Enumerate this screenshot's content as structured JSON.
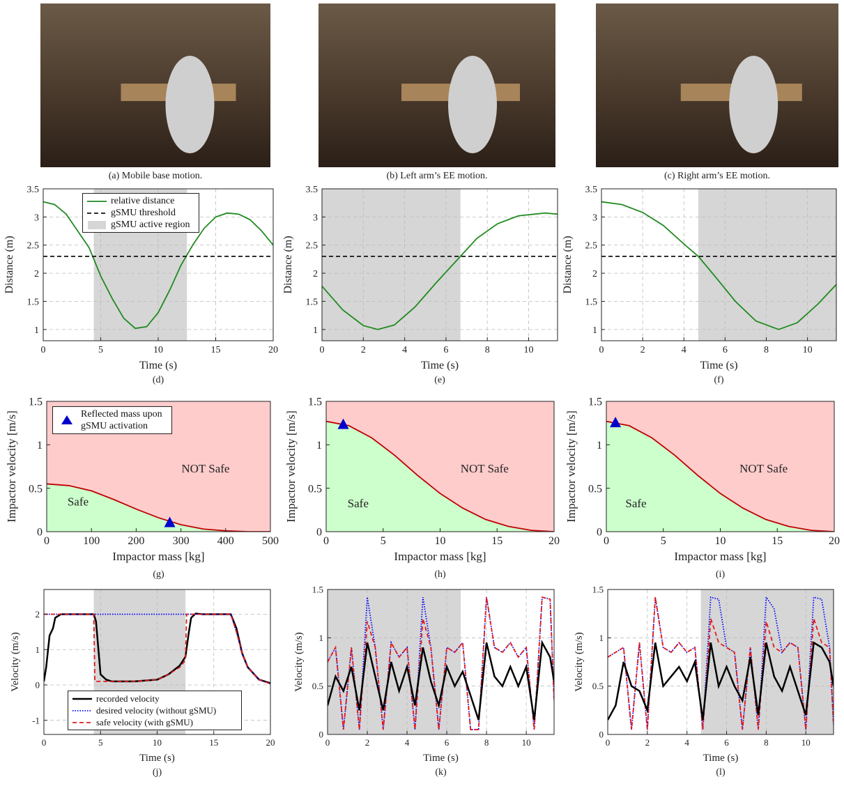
{
  "images": [
    {
      "caption": "(a) Mobile base motion."
    },
    {
      "caption": "(b) Left arm’s EE motion."
    },
    {
      "caption": "(c) Right arm’s EE motion."
    }
  ],
  "chart_data": [
    {
      "type": "line",
      "caption": "(d)",
      "xlabel": "Time (s)",
      "ylabel": "Distance (m)",
      "xlim": [
        0,
        20
      ],
      "ylim": [
        0.8,
        3.5
      ],
      "xticks": [
        0,
        5,
        10,
        15,
        20
      ],
      "yticks": [
        1,
        1.5,
        2,
        2.5,
        3,
        3.5
      ],
      "grid": true,
      "legend": "upper left",
      "series": [
        {
          "name": "relative distance",
          "kind": "line",
          "color": "#1f8a1f",
          "x": [
            0,
            1,
            2,
            3,
            4,
            5,
            6,
            7,
            8,
            9,
            10,
            11,
            12,
            13,
            14,
            15,
            16,
            17,
            18,
            19,
            20
          ],
          "values": [
            3.27,
            3.22,
            3.05,
            2.75,
            2.45,
            1.95,
            1.55,
            1.2,
            1.02,
            1.05,
            1.3,
            1.7,
            2.15,
            2.5,
            2.8,
            3.0,
            3.07,
            3.05,
            2.95,
            2.75,
            2.5
          ]
        },
        {
          "name": "gSMU threshold",
          "kind": "line",
          "style": "dashed",
          "color": "#111111",
          "x": [
            0,
            20
          ],
          "values": [
            2.3,
            2.3
          ]
        },
        {
          "name": "gSMU active region",
          "kind": "span",
          "color": "#d6d6d6",
          "x": [
            4.4,
            12.5
          ]
        }
      ]
    },
    {
      "type": "line",
      "caption": "(e)",
      "xlabel": "Time (s)",
      "ylabel": "Distance (m)",
      "xlim": [
        0,
        11.4
      ],
      "ylim": [
        0.8,
        3.5
      ],
      "xticks": [
        0,
        2,
        4,
        6,
        8,
        10
      ],
      "yticks": [
        1,
        1.5,
        2,
        2.5,
        3,
        3.5
      ],
      "grid": true,
      "series": [
        {
          "kind": "line",
          "color": "#1f8a1f",
          "x": [
            0,
            1,
            2,
            2.7,
            3.5,
            4.5,
            5.5,
            6.7,
            7.5,
            8.5,
            9.5,
            10.8,
            11.4
          ],
          "values": [
            1.77,
            1.35,
            1.07,
            1.0,
            1.08,
            1.4,
            1.82,
            2.3,
            2.62,
            2.88,
            3.02,
            3.07,
            3.05
          ]
        },
        {
          "kind": "line",
          "style": "dashed",
          "color": "#111111",
          "x": [
            0,
            11.4
          ],
          "values": [
            2.3,
            2.3
          ]
        },
        {
          "kind": "span",
          "color": "#d6d6d6",
          "x": [
            0,
            6.7
          ]
        }
      ]
    },
    {
      "type": "line",
      "caption": "(f)",
      "xlabel": "Time (s)",
      "ylabel": "Distance (m)",
      "xlim": [
        0,
        11.4
      ],
      "ylim": [
        0.8,
        3.5
      ],
      "xticks": [
        0,
        2,
        4,
        6,
        8,
        10
      ],
      "yticks": [
        1,
        1.5,
        2,
        2.5,
        3,
        3.5
      ],
      "grid": true,
      "series": [
        {
          "kind": "line",
          "color": "#1f8a1f",
          "x": [
            0,
            1,
            2,
            3,
            4,
            4.7,
            5.5,
            6.5,
            7.5,
            8.6,
            9.5,
            10.5,
            11.4
          ],
          "values": [
            3.27,
            3.22,
            3.08,
            2.85,
            2.52,
            2.3,
            1.95,
            1.5,
            1.15,
            1.0,
            1.12,
            1.45,
            1.8
          ]
        },
        {
          "kind": "line",
          "style": "dashed",
          "color": "#111111",
          "x": [
            0,
            11.4
          ],
          "values": [
            2.3,
            2.3
          ]
        },
        {
          "kind": "span",
          "color": "#d6d6d6",
          "x": [
            4.7,
            11.4
          ]
        }
      ]
    },
    {
      "type": "area",
      "caption": "(g)",
      "xlabel": "Impactor mass [kg]",
      "ylabel": "Impactor velocity [m/s]",
      "background": "#ffcccc",
      "xlim": [
        0,
        500
      ],
      "ylim": [
        0,
        1.5
      ],
      "xticks": [
        0,
        100,
        200,
        300,
        400,
        500
      ],
      "yticks": [
        0,
        0.5,
        1,
        1.5
      ],
      "grid": false,
      "legend": "upper left",
      "annotations": [
        {
          "text": "Safe",
          "x": 70,
          "y": 0.3
        },
        {
          "text": "NOT Safe",
          "x": 355,
          "y": 0.68
        }
      ],
      "series": [
        {
          "kind": "line",
          "color": "#c00000",
          "fill_below": "#ccffcc",
          "x": [
            0,
            50,
            100,
            150,
            200,
            250,
            300,
            350,
            400,
            450,
            500
          ],
          "values": [
            0.55,
            0.53,
            0.47,
            0.37,
            0.26,
            0.16,
            0.08,
            0.03,
            0.01,
            0,
            0
          ]
        },
        {
          "name": "Reflected mass upon gSMU activation",
          "kind": "marker",
          "color": "#0000cc",
          "x": [
            275
          ],
          "values": [
            0.1
          ]
        }
      ]
    },
    {
      "type": "area",
      "caption": "(h)",
      "xlabel": "Impactor mass [kg]",
      "ylabel": "Impactor velocity [m/s]",
      "background": "#ffcccc",
      "xlim": [
        0,
        20
      ],
      "ylim": [
        0,
        1.5
      ],
      "xticks": [
        0,
        5,
        10,
        15,
        20
      ],
      "yticks": [
        0,
        0.5,
        1,
        1.5
      ],
      "grid": false,
      "annotations": [
        {
          "text": "Safe",
          "x": 2.8,
          "y": 0.28
        },
        {
          "text": "NOT Safe",
          "x": 13.9,
          "y": 0.68
        }
      ],
      "series": [
        {
          "kind": "line",
          "color": "#c00000",
          "fill_below": "#ccffcc",
          "x": [
            0,
            2,
            4,
            6,
            8,
            10,
            12,
            14,
            16,
            18,
            20
          ],
          "values": [
            1.27,
            1.22,
            1.08,
            0.88,
            0.65,
            0.44,
            0.27,
            0.14,
            0.06,
            0.015,
            0
          ]
        },
        {
          "kind": "marker",
          "color": "#0000cc",
          "x": [
            1.5
          ],
          "values": [
            1.23
          ]
        }
      ]
    },
    {
      "type": "area",
      "caption": "(i)",
      "xlabel": "Impactor mass [kg]",
      "ylabel": "Impactor velocity [m/s]",
      "background": "#ffcccc",
      "xlim": [
        0,
        20
      ],
      "ylim": [
        0,
        1.5
      ],
      "xticks": [
        0,
        5,
        10,
        15,
        20
      ],
      "yticks": [
        0,
        0.5,
        1,
        1.5
      ],
      "grid": false,
      "annotations": [
        {
          "text": "Safe",
          "x": 2.6,
          "y": 0.28
        },
        {
          "text": "NOT Safe",
          "x": 13.8,
          "y": 0.68
        }
      ],
      "series": [
        {
          "kind": "line",
          "color": "#c00000",
          "fill_below": "#ccffcc",
          "x": [
            0,
            2,
            4,
            6,
            8,
            10,
            12,
            14,
            16,
            18,
            20
          ],
          "values": [
            1.27,
            1.22,
            1.08,
            0.88,
            0.65,
            0.44,
            0.27,
            0.14,
            0.06,
            0.015,
            0
          ]
        },
        {
          "kind": "marker",
          "color": "#0000cc",
          "x": [
            0.8
          ],
          "values": [
            1.25
          ]
        }
      ]
    },
    {
      "type": "line",
      "caption": "(j)",
      "xlabel": "Time (s)",
      "ylabel": "Velocity (m/s)",
      "xlim": [
        0,
        20
      ],
      "ylim": [
        -1.4,
        2.7
      ],
      "xticks": [
        0,
        5,
        10,
        15,
        20
      ],
      "yticks": [
        -1,
        0,
        1,
        2
      ],
      "grid": true,
      "legend": "lower left",
      "series": [
        {
          "name": "recorded velocity",
          "kind": "line",
          "color": "#000000",
          "width": 2.5,
          "x": [
            0,
            0.2,
            0.5,
            0.8,
            1,
            1.5,
            2,
            4.4,
            4.6,
            5,
            5.5,
            6,
            8,
            10,
            11,
            12,
            12.5,
            12.8,
            13,
            13.4,
            14,
            16.5,
            17,
            17.5,
            18,
            19,
            20
          ],
          "values": [
            0.1,
            0.5,
            1.4,
            1.6,
            1.9,
            2,
            2,
            2,
            1.8,
            0.3,
            0.15,
            0.1,
            0.1,
            0.15,
            0.3,
            0.55,
            0.8,
            1.5,
            1.9,
            2.02,
            2,
            2,
            1.6,
            0.9,
            0.5,
            0.15,
            0.05
          ]
        },
        {
          "name": "desired velocity (without gSMU)",
          "kind": "line",
          "style": "dotted",
          "color": "#0000ff",
          "x": [
            0,
            1,
            16.5,
            17,
            17.5,
            18,
            19,
            20
          ],
          "values": [
            2,
            2,
            2,
            1.5,
            0.9,
            0.5,
            0.15,
            0.03
          ]
        },
        {
          "name": "safe velocity (with gSMU)",
          "kind": "line",
          "style": "dashed",
          "color": "#e41a1c",
          "x": [
            0,
            4.4,
            4.5,
            5,
            8,
            10,
            11,
            12,
            12.5,
            12.6,
            16.5,
            17,
            17.5,
            18,
            19,
            20
          ],
          "values": [
            2,
            2,
            0.1,
            0.1,
            0.1,
            0.15,
            0.3,
            0.5,
            0.7,
            2,
            2,
            1.5,
            0.9,
            0.5,
            0.15,
            0.03
          ]
        },
        {
          "kind": "span",
          "color": "#d6d6d6",
          "x": [
            4.4,
            12.5
          ]
        }
      ]
    },
    {
      "type": "line",
      "caption": "(k)",
      "xlabel": "Time (s)",
      "ylabel": "Velocity (m/s)",
      "xlim": [
        0,
        11.4
      ],
      "ylim": [
        0,
        1.5
      ],
      "xticks": [
        0,
        2,
        4,
        6,
        8,
        10
      ],
      "yticks": [
        0,
        0.5,
        1,
        1.5
      ],
      "grid": true,
      "x": [
        0,
        0.4,
        0.8,
        1.2,
        1.6,
        2.0,
        2.4,
        2.8,
        3.2,
        3.6,
        4.0,
        4.4,
        4.8,
        5.2,
        5.6,
        6.0,
        6.4,
        6.8,
        7.2,
        7.6,
        8.0,
        8.4,
        8.8,
        9.2,
        9.6,
        10.0,
        10.4,
        10.8,
        11.2,
        11.4
      ],
      "series": [
        {
          "kind": "span",
          "color": "#d6d6d6",
          "x": [
            0,
            6.7
          ]
        },
        {
          "kind": "line",
          "style": "dotted",
          "color": "#0000ff",
          "values": [
            0.75,
            0.9,
            0.05,
            0.9,
            0.05,
            1.42,
            0.9,
            0.05,
            0.95,
            0.8,
            0.9,
            0.05,
            1.42,
            0.9,
            0.05,
            0.9,
            0.85,
            0.95,
            0.05,
            0.05,
            1.42,
            0.9,
            0.85,
            0.95,
            0.8,
            0.9,
            0.05,
            1.42,
            1.4,
            0.35
          ]
        },
        {
          "kind": "line",
          "style": "dashed",
          "color": "#e41a1c",
          "values": [
            0.75,
            0.9,
            0.05,
            0.9,
            0.05,
            1.17,
            0.9,
            0.05,
            0.95,
            0.8,
            0.9,
            0.05,
            1.2,
            0.9,
            0.05,
            0.9,
            0.85,
            0.95,
            0.05,
            0.05,
            1.42,
            0.9,
            0.85,
            0.95,
            0.8,
            0.9,
            0.05,
            1.42,
            1.4,
            0.35
          ]
        },
        {
          "kind": "line",
          "color": "#000000",
          "width": 2.5,
          "values": [
            0.3,
            0.6,
            0.45,
            0.7,
            0.25,
            0.95,
            0.6,
            0.25,
            0.75,
            0.45,
            0.7,
            0.3,
            0.9,
            0.55,
            0.3,
            0.7,
            0.5,
            0.65,
            0.4,
            0.15,
            0.95,
            0.6,
            0.5,
            0.7,
            0.5,
            0.7,
            0.15,
            0.95,
            0.8,
            0.55
          ]
        }
      ]
    },
    {
      "type": "line",
      "caption": "(l)",
      "xlabel": "Time (s)",
      "ylabel": "Velocity (m/s)",
      "xlim": [
        0,
        11.4
      ],
      "ylim": [
        0,
        1.5
      ],
      "xticks": [
        0,
        2,
        4,
        6,
        8,
        10
      ],
      "yticks": [
        0,
        0.5,
        1,
        1.5
      ],
      "grid": true,
      "x": [
        0,
        0.4,
        0.8,
        1.2,
        1.6,
        2.0,
        2.4,
        2.8,
        3.2,
        3.6,
        4.0,
        4.4,
        4.8,
        5.2,
        5.6,
        6.0,
        6.4,
        6.8,
        7.2,
        7.6,
        8.0,
        8.4,
        8.8,
        9.2,
        9.6,
        10.0,
        10.4,
        10.8,
        11.2,
        11.4
      ],
      "series": [
        {
          "kind": "span",
          "color": "#d6d6d6",
          "x": [
            4.7,
            11.4
          ]
        },
        {
          "kind": "line",
          "style": "dotted",
          "color": "#0000ff",
          "values": [
            0.8,
            0.85,
            0.9,
            0.05,
            0.95,
            0.05,
            1.42,
            0.9,
            0.85,
            0.95,
            0.85,
            0.9,
            0.05,
            1.42,
            1.4,
            0.9,
            0.85,
            0.05,
            0.9,
            0.05,
            1.42,
            1.3,
            0.85,
            0.95,
            0.9,
            0.05,
            1.42,
            1.4,
            0.9,
            0.1
          ]
        },
        {
          "kind": "line",
          "style": "dashed",
          "color": "#e41a1c",
          "values": [
            0.8,
            0.85,
            0.9,
            0.05,
            0.95,
            0.05,
            1.42,
            0.9,
            0.85,
            0.95,
            0.85,
            0.9,
            0.05,
            1.2,
            0.95,
            0.9,
            0.85,
            0.05,
            0.9,
            0.05,
            1.17,
            0.9,
            0.85,
            0.95,
            0.9,
            0.05,
            1.2,
            0.95,
            0.9,
            0.1
          ]
        },
        {
          "kind": "line",
          "color": "#000000",
          "width": 2.5,
          "values": [
            0.15,
            0.3,
            0.75,
            0.5,
            0.45,
            0.25,
            0.95,
            0.5,
            0.6,
            0.7,
            0.55,
            0.75,
            0.15,
            0.95,
            0.5,
            0.7,
            0.5,
            0.35,
            0.8,
            0.2,
            0.95,
            0.6,
            0.45,
            0.7,
            0.45,
            0.2,
            0.95,
            0.9,
            0.75,
            0.5
          ]
        }
      ]
    }
  ]
}
